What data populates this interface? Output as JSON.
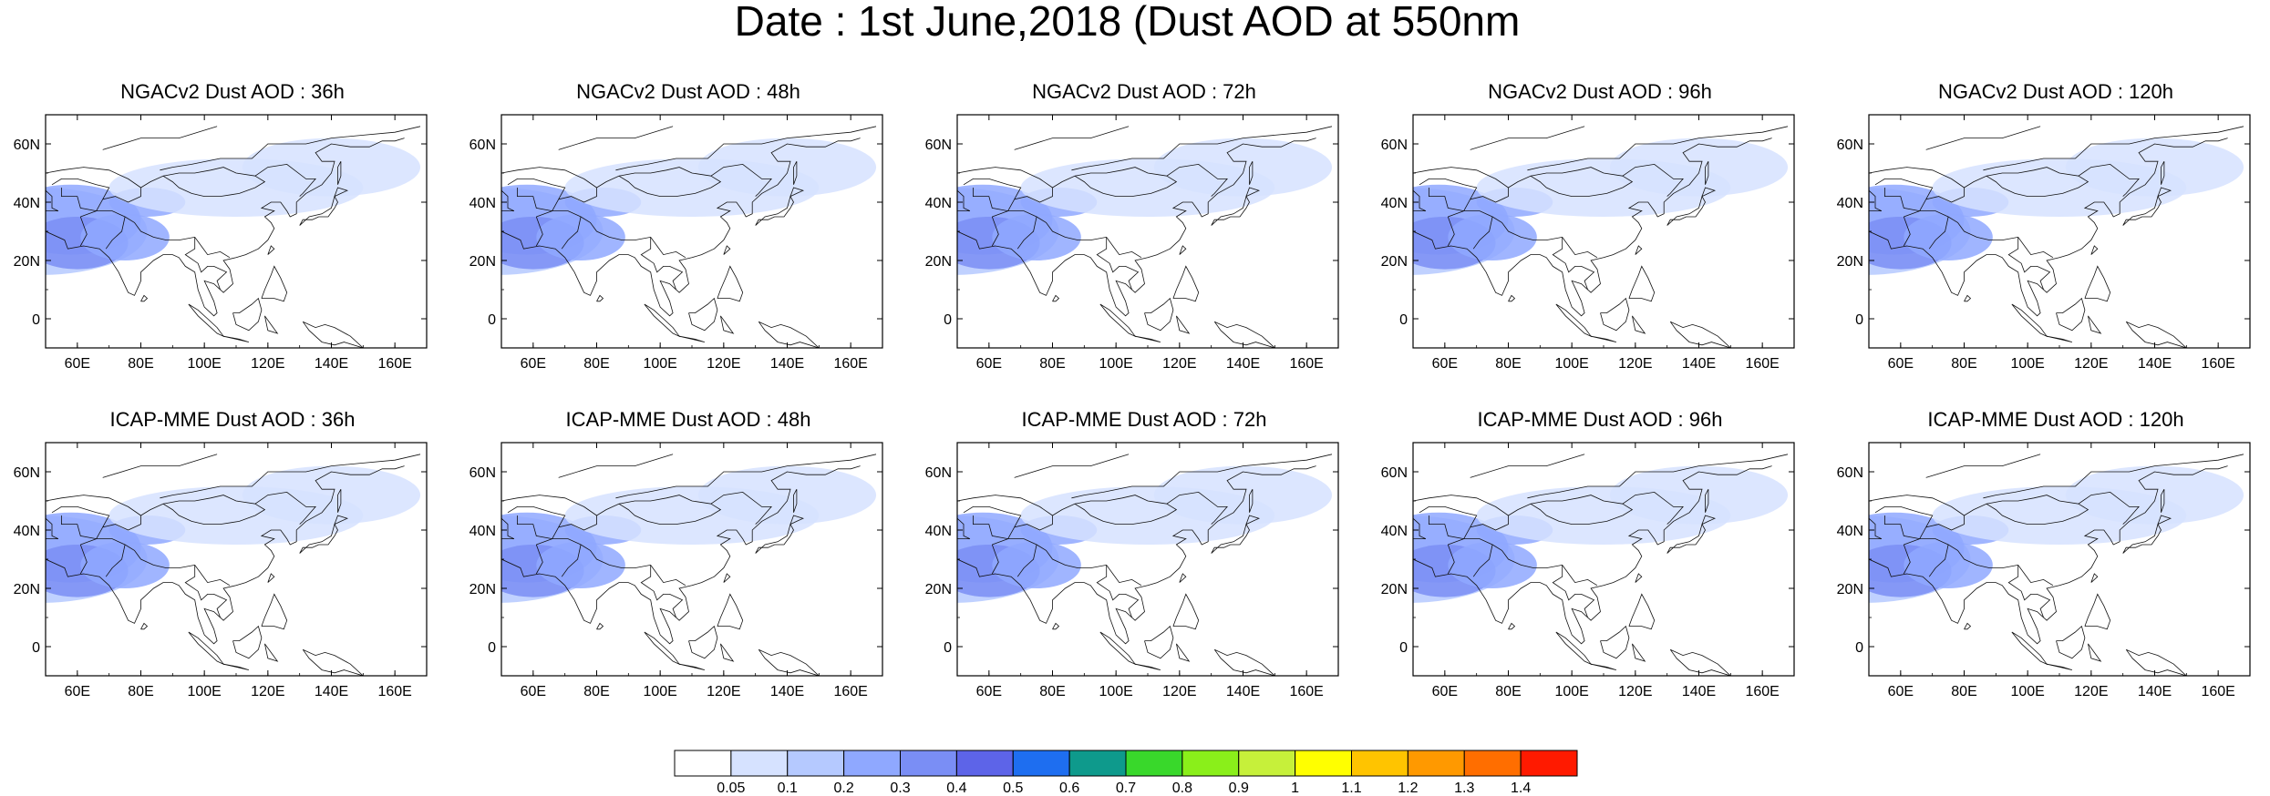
{
  "title": "Date : 1st June,2018 (Dust AOD at 550nm",
  "lon_ticks": [
    "60E",
    "80E",
    "100E",
    "120E",
    "140E",
    "160E"
  ],
  "lat_ticks": [
    "60N",
    "40N",
    "20N",
    "0"
  ],
  "panels": [
    {
      "title": "NGACv2 Dust AOD : 36h"
    },
    {
      "title": "NGACv2 Dust AOD : 48h"
    },
    {
      "title": "NGACv2 Dust AOD : 72h"
    },
    {
      "title": "NGACv2 Dust AOD : 96h"
    },
    {
      "title": "NGACv2 Dust AOD : 120h"
    },
    {
      "title": "ICAP-MME Dust AOD : 36h"
    },
    {
      "title": "ICAP-MME Dust AOD : 48h"
    },
    {
      "title": "ICAP-MME Dust AOD : 72h"
    },
    {
      "title": "ICAP-MME Dust AOD : 96h"
    },
    {
      "title": "ICAP-MME Dust AOD : 120h"
    }
  ],
  "colorbar": {
    "labels": [
      "0.05",
      "0.1",
      "0.2",
      "0.3",
      "0.4",
      "0.5",
      "0.6",
      "0.7",
      "0.8",
      "0.9",
      "1",
      "1.1",
      "1.2",
      "1.3",
      "1.4"
    ],
    "colors": [
      "#ffffff",
      "#d6e2ff",
      "#b5c9ff",
      "#8fa8ff",
      "#7a8ef5",
      "#5d64e8",
      "#1e6ef0",
      "#0e9a8c",
      "#39d82b",
      "#8aef1a",
      "#c6f03a",
      "#ffff00",
      "#ffc400",
      "#ff9900",
      "#ff6e00",
      "#ff1a00"
    ]
  }
}
